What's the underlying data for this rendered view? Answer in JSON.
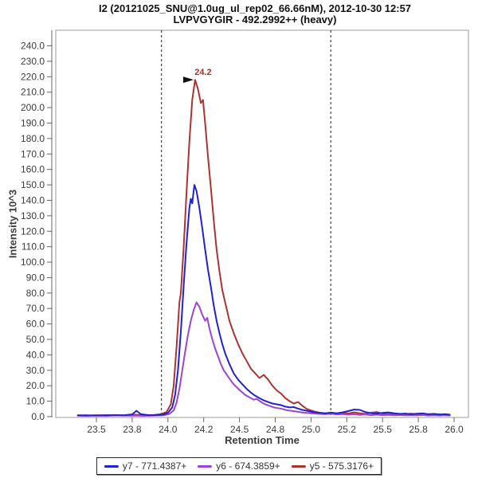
{
  "header": {
    "title_line1": "I2 (20121025_SNU@1.0ug_ul_rep02_66.66nM), 2012-10-30 12:57",
    "title_line2": "LVPVGYGIR - 492.2992++ (heavy)"
  },
  "chart_data": {
    "type": "line",
    "title": "I2 (20121025_SNU@1.0ug_ul_rep02_66.66nM), 2012-10-30 12:57 / LVPVGYGIR - 492.2992++ (heavy)",
    "xlabel": "Retention Time",
    "ylabel": "Intensity 10^3",
    "xlim": [
      23.2,
      26.1
    ],
    "ylim": [
      0,
      250
    ],
    "grid": false,
    "legend_position": "bottom",
    "y_ticks": {
      "min": 0,
      "max": 240,
      "step": 10,
      "decimals": 1
    },
    "x_ticks": [
      {
        "value": 23.5,
        "label": "23.5"
      },
      {
        "value": 23.75,
        "label": "23.8"
      },
      {
        "value": 24.0,
        "label": "24.0"
      },
      {
        "value": 24.25,
        "label": "24.2"
      },
      {
        "value": 24.5,
        "label": "24.5"
      },
      {
        "value": 24.75,
        "label": "24.8"
      },
      {
        "value": 25.0,
        "label": "25.0"
      },
      {
        "value": 25.25,
        "label": "25.2"
      },
      {
        "value": 25.5,
        "label": "25.5"
      },
      {
        "value": 25.75,
        "label": "25.8"
      },
      {
        "value": 26.0,
        "label": "26.0"
      }
    ],
    "boundary_lines_rt": [
      23.955,
      25.138
    ],
    "annotation": {
      "text": "24.2",
      "rt_apex": 24.19,
      "apex_value": 218,
      "color": "#a53030",
      "arrow_color": "#111111"
    },
    "series": [
      {
        "name": "y7 - 771.4387+",
        "color": "#2121d4",
        "points": [
          [
            23.37,
            0.8
          ],
          [
            23.43,
            0.9
          ],
          [
            23.5,
            0.7
          ],
          [
            23.57,
            1.0
          ],
          [
            23.63,
            0.8
          ],
          [
            23.7,
            1.0
          ],
          [
            23.75,
            1.5
          ],
          [
            23.78,
            3.8
          ],
          [
            23.81,
            1.6
          ],
          [
            23.87,
            0.9
          ],
          [
            23.92,
            1.0
          ],
          [
            23.97,
            1.4
          ],
          [
            24.0,
            2.5
          ],
          [
            24.03,
            6
          ],
          [
            24.05,
            14
          ],
          [
            24.07,
            30
          ],
          [
            24.09,
            55
          ],
          [
            24.11,
            85
          ],
          [
            24.13,
            112
          ],
          [
            24.15,
            135
          ],
          [
            24.16,
            141
          ],
          [
            24.17,
            138
          ],
          [
            24.185,
            150
          ],
          [
            24.2,
            146
          ],
          [
            24.22,
            135
          ],
          [
            24.24,
            122
          ],
          [
            24.26,
            108
          ],
          [
            24.28,
            95
          ],
          [
            24.3,
            84
          ],
          [
            24.32,
            72
          ],
          [
            24.34,
            62
          ],
          [
            24.36,
            54
          ],
          [
            24.38,
            47
          ],
          [
            24.4,
            41
          ],
          [
            24.43,
            34
          ],
          [
            24.46,
            28
          ],
          [
            24.49,
            24
          ],
          [
            24.52,
            21
          ],
          [
            24.55,
            18
          ],
          [
            24.58,
            15.5
          ],
          [
            24.61,
            13.5
          ],
          [
            24.64,
            12
          ],
          [
            24.67,
            10.5
          ],
          [
            24.7,
            9.5
          ],
          [
            24.73,
            8.5
          ],
          [
            24.76,
            8.0
          ],
          [
            24.79,
            7.5
          ],
          [
            24.82,
            6.5
          ],
          [
            24.85,
            6.0
          ],
          [
            24.88,
            6.2
          ],
          [
            24.91,
            5.2
          ],
          [
            24.94,
            4.4
          ],
          [
            24.97,
            3.8
          ],
          [
            25.0,
            3.2
          ],
          [
            25.03,
            2.8
          ],
          [
            25.06,
            2.4
          ],
          [
            25.1,
            2.2
          ],
          [
            25.14,
            2.6
          ],
          [
            25.18,
            2.2
          ],
          [
            25.22,
            2.8
          ],
          [
            25.26,
            3.6
          ],
          [
            25.3,
            4.6
          ],
          [
            25.34,
            4.4
          ],
          [
            25.38,
            3.0
          ],
          [
            25.42,
            2.2
          ],
          [
            25.46,
            2.0
          ],
          [
            25.5,
            2.4
          ],
          [
            25.54,
            2.8
          ],
          [
            25.58,
            2.2
          ],
          [
            25.62,
            1.8
          ],
          [
            25.66,
            2.0
          ],
          [
            25.7,
            1.6
          ],
          [
            25.74,
            1.9
          ],
          [
            25.78,
            2.1
          ],
          [
            25.82,
            1.6
          ],
          [
            25.86,
            1.8
          ],
          [
            25.9,
            1.4
          ],
          [
            25.94,
            1.6
          ],
          [
            25.97,
            1.3
          ]
        ]
      },
      {
        "name": "y6 - 674.3859+",
        "color": "#9b45d2",
        "points": [
          [
            23.37,
            0.6
          ],
          [
            23.43,
            0.5
          ],
          [
            23.5,
            0.7
          ],
          [
            23.57,
            0.5
          ],
          [
            23.63,
            0.8
          ],
          [
            23.7,
            0.6
          ],
          [
            23.77,
            0.7
          ],
          [
            23.83,
            0.5
          ],
          [
            23.9,
            0.7
          ],
          [
            23.97,
            0.9
          ],
          [
            24.01,
            1.8
          ],
          [
            24.04,
            4
          ],
          [
            24.06,
            9
          ],
          [
            24.08,
            18
          ],
          [
            24.1,
            30
          ],
          [
            24.12,
            42
          ],
          [
            24.14,
            53
          ],
          [
            24.16,
            62
          ],
          [
            24.18,
            69
          ],
          [
            24.2,
            74
          ],
          [
            24.22,
            71
          ],
          [
            24.24,
            66
          ],
          [
            24.26,
            62
          ],
          [
            24.275,
            64
          ],
          [
            24.29,
            57
          ],
          [
            24.31,
            50
          ],
          [
            24.33,
            44
          ],
          [
            24.35,
            39
          ],
          [
            24.37,
            34
          ],
          [
            24.39,
            30
          ],
          [
            24.42,
            26
          ],
          [
            24.45,
            22
          ],
          [
            24.48,
            19
          ],
          [
            24.51,
            16.5
          ],
          [
            24.54,
            14
          ],
          [
            24.57,
            12.5
          ],
          [
            24.6,
            11
          ],
          [
            24.62,
            11.5
          ],
          [
            24.65,
            9.5
          ],
          [
            24.68,
            8
          ],
          [
            24.71,
            7
          ],
          [
            24.74,
            6
          ],
          [
            24.77,
            5.5
          ],
          [
            24.8,
            5.0
          ],
          [
            24.83,
            4.2
          ],
          [
            24.86,
            3.8
          ],
          [
            24.89,
            3.4
          ],
          [
            24.92,
            3.0
          ],
          [
            24.95,
            2.6
          ],
          [
            24.98,
            2.3
          ],
          [
            25.02,
            2.0
          ],
          [
            25.06,
            1.8
          ],
          [
            25.1,
            1.6
          ],
          [
            25.14,
            1.9
          ],
          [
            25.18,
            1.4
          ],
          [
            25.22,
            1.7
          ],
          [
            25.26,
            1.3
          ],
          [
            25.3,
            1.6
          ],
          [
            25.34,
            1.2
          ],
          [
            25.38,
            1.4
          ],
          [
            25.42,
            1.0
          ],
          [
            25.46,
            1.3
          ],
          [
            25.5,
            1.0
          ],
          [
            25.54,
            1.2
          ],
          [
            25.58,
            0.9
          ],
          [
            25.62,
            1.1
          ],
          [
            25.66,
            0.8
          ],
          [
            25.7,
            1.0
          ],
          [
            25.74,
            0.8
          ],
          [
            25.78,
            1.1
          ],
          [
            25.82,
            0.7
          ],
          [
            25.86,
            0.9
          ],
          [
            25.9,
            0.7
          ],
          [
            25.94,
            0.9
          ],
          [
            25.97,
            0.7
          ]
        ]
      },
      {
        "name": "y5 - 575.3176+",
        "color": "#ad3232",
        "points": [
          [
            23.37,
            0.9
          ],
          [
            23.43,
            0.7
          ],
          [
            23.5,
            1.0
          ],
          [
            23.57,
            0.8
          ],
          [
            23.63,
            1.1
          ],
          [
            23.7,
            0.8
          ],
          [
            23.77,
            1.3
          ],
          [
            23.83,
            0.9
          ],
          [
            23.9,
            1.1
          ],
          [
            23.95,
            1.6
          ],
          [
            23.99,
            3
          ],
          [
            24.02,
            8
          ],
          [
            24.04,
            20
          ],
          [
            24.06,
            45
          ],
          [
            24.08,
            74
          ],
          [
            24.09,
            80
          ],
          [
            24.11,
            110
          ],
          [
            24.13,
            145
          ],
          [
            24.15,
            178
          ],
          [
            24.17,
            205
          ],
          [
            24.19,
            218
          ],
          [
            24.21,
            212
          ],
          [
            24.23,
            203
          ],
          [
            24.245,
            205
          ],
          [
            24.26,
            190
          ],
          [
            24.28,
            168
          ],
          [
            24.3,
            148
          ],
          [
            24.32,
            127
          ],
          [
            24.34,
            108
          ],
          [
            24.36,
            94
          ],
          [
            24.38,
            82
          ],
          [
            24.4,
            74
          ],
          [
            24.43,
            62
          ],
          [
            24.46,
            54
          ],
          [
            24.49,
            47
          ],
          [
            24.52,
            41
          ],
          [
            24.55,
            36
          ],
          [
            24.58,
            31
          ],
          [
            24.61,
            28
          ],
          [
            24.64,
            25
          ],
          [
            24.67,
            27
          ],
          [
            24.7,
            24
          ],
          [
            24.73,
            20
          ],
          [
            24.76,
            17
          ],
          [
            24.79,
            15
          ],
          [
            24.82,
            12
          ],
          [
            24.85,
            10
          ],
          [
            24.88,
            8.5
          ],
          [
            24.91,
            9.5
          ],
          [
            24.94,
            7
          ],
          [
            24.97,
            5
          ],
          [
            25.0,
            4
          ],
          [
            25.03,
            3.2
          ],
          [
            25.06,
            2.6
          ],
          [
            25.1,
            2.2
          ],
          [
            25.14,
            2.6
          ],
          [
            25.18,
            2.0
          ],
          [
            25.22,
            2.4
          ],
          [
            25.26,
            2.0
          ],
          [
            25.3,
            2.8
          ],
          [
            25.34,
            2.2
          ],
          [
            25.38,
            1.8
          ],
          [
            25.42,
            2.6
          ],
          [
            25.46,
            3.0
          ],
          [
            25.5,
            2.0
          ],
          [
            25.54,
            1.6
          ],
          [
            25.58,
            1.9
          ],
          [
            25.62,
            1.4
          ],
          [
            25.66,
            1.7
          ],
          [
            25.7,
            1.9
          ],
          [
            25.74,
            1.4
          ],
          [
            25.78,
            1.2
          ],
          [
            25.82,
            1.6
          ],
          [
            25.86,
            1.1
          ],
          [
            25.9,
            1.4
          ],
          [
            25.94,
            1.0
          ],
          [
            25.97,
            1.2
          ]
        ]
      }
    ]
  },
  "legend": {
    "items": [
      {
        "label": "y7 - 771.4387+",
        "color": "#2121d4"
      },
      {
        "label": "y6 - 674.3859+",
        "color": "#9b45d2"
      },
      {
        "label": "y5 - 575.3176+",
        "color": "#ad3232"
      }
    ]
  }
}
